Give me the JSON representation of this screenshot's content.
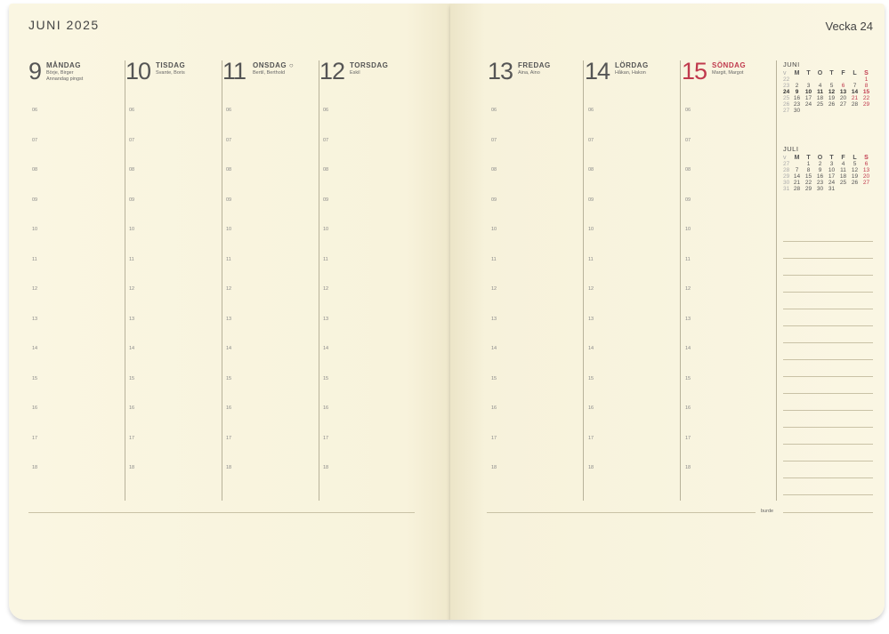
{
  "header": {
    "month_title": "JUNI 2025",
    "week_label": "Vecka 24"
  },
  "days": [
    {
      "num": "9",
      "name": "MÅNDAG",
      "names": "Börje, Birger",
      "note": "Annandag pingst",
      "red": false
    },
    {
      "num": "10",
      "name": "TISDAG",
      "names": "Svante, Boris",
      "note": "",
      "red": false
    },
    {
      "num": "11",
      "name": "ONSDAG ○",
      "names": "Bertil, Berthold",
      "note": "",
      "red": false
    },
    {
      "num": "12",
      "name": "TORSDAG",
      "names": "Eskil",
      "note": "",
      "red": false
    },
    {
      "num": "13",
      "name": "FREDAG",
      "names": "Aina, Aino",
      "note": "",
      "red": false
    },
    {
      "num": "14",
      "name": "LÖRDAG",
      "names": "Håkan, Hakon",
      "note": "",
      "red": false
    },
    {
      "num": "15",
      "name": "SÖNDAG",
      "names": "Margit, Margot",
      "note": "",
      "red": true
    }
  ],
  "hours": [
    "06",
    "07",
    "08",
    "09",
    "10",
    "11",
    "12",
    "13",
    "14",
    "15",
    "16",
    "17",
    "18"
  ],
  "mini_calendars": [
    {
      "title": "JUNI",
      "header": [
        "v",
        "M",
        "T",
        "O",
        "T",
        "F",
        "L",
        "S"
      ],
      "rows": [
        [
          "22",
          "",
          "",
          "",
          "",
          "",
          "",
          "1"
        ],
        [
          "23",
          "2",
          "3",
          "4",
          "5",
          "6",
          "7",
          "8"
        ],
        [
          "24",
          "9",
          "10",
          "11",
          "12",
          "13",
          "14",
          "15"
        ],
        [
          "25",
          "16",
          "17",
          "18",
          "19",
          "20",
          "21",
          "22"
        ],
        [
          "26",
          "23",
          "24",
          "25",
          "26",
          "27",
          "28",
          "29"
        ],
        [
          "27",
          "30",
          "",
          "",
          "",
          "",
          "",
          ""
        ]
      ],
      "red_days": [
        "1",
        "6",
        "8",
        "15",
        "21",
        "22",
        "29"
      ],
      "current_week": "24"
    },
    {
      "title": "JULI",
      "header": [
        "v",
        "M",
        "T",
        "O",
        "T",
        "F",
        "L",
        "S"
      ],
      "rows": [
        [
          "27",
          "",
          "1",
          "2",
          "3",
          "4",
          "5",
          "6"
        ],
        [
          "28",
          "7",
          "8",
          "9",
          "10",
          "11",
          "12",
          "13"
        ],
        [
          "29",
          "14",
          "15",
          "16",
          "17",
          "18",
          "19",
          "20"
        ],
        [
          "30",
          "21",
          "22",
          "23",
          "24",
          "25",
          "26",
          "27"
        ],
        [
          "31",
          "28",
          "29",
          "30",
          "31",
          "",
          "",
          ""
        ]
      ],
      "red_days": [
        "6",
        "13",
        "20",
        "27"
      ],
      "current_week": ""
    }
  ],
  "footer": {
    "burde_label": "burde"
  },
  "colors": {
    "paper": "#f9f4de",
    "accent_red": "#c0394d",
    "text": "#555555"
  }
}
